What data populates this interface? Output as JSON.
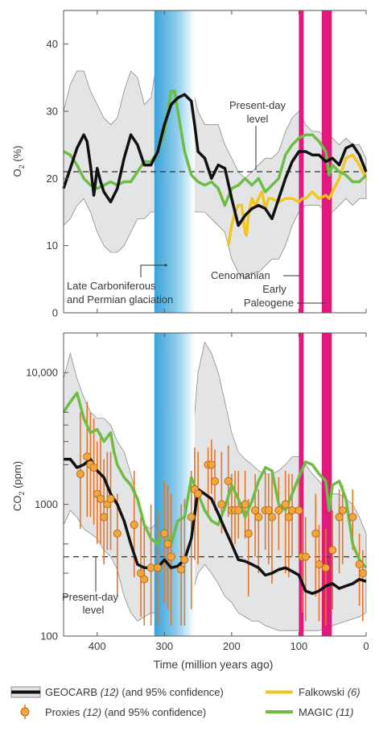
{
  "colors": {
    "geocarb": "#111111",
    "confidence_fill": "#e3e4e6",
    "confidence_edge": "#8c8c8c",
    "proxies_fill": "#f3a63a",
    "proxies_edge": "#b5651d",
    "proxy_error": "#e8752a",
    "falkowski": "#f2c51f",
    "magic": "#6dbd45",
    "glaciation": "#3aa3d8",
    "events": "#e0197d",
    "present_line": "#333333"
  },
  "shared_axis": {
    "xlabel": "Time (million years ago)",
    "xlim": [
      450,
      0
    ],
    "ticks": [
      "400",
      "300",
      "200",
      "100",
      "0"
    ]
  },
  "chart_data": [
    {
      "type": "line",
      "id": "o2",
      "ylabel_main": "O",
      "ylabel_sub": "2",
      "ylabel_unit": " (%)",
      "ylim": [
        0,
        45
      ],
      "yticks": [
        "0",
        "10",
        "20",
        "30",
        "40"
      ],
      "present_day_value": 21,
      "annotations": {
        "present_line1": "Present-day",
        "present_line2": "level",
        "glaciation_line1": "Late Carboniferous",
        "glaciation_line2": "and Permian glaciation",
        "cenomanian": "Cenomanian",
        "paleogene_line1": "Early",
        "paleogene_line2": "Paleogene"
      },
      "series": [
        {
          "key": "geocarb",
          "x": [
            450,
            440,
            430,
            420,
            415,
            410,
            405,
            400,
            395,
            390,
            380,
            370,
            360,
            350,
            340,
            330,
            320,
            310,
            300,
            290,
            280,
            270,
            260,
            255,
            250,
            240,
            230,
            220,
            210,
            200,
            190,
            180,
            170,
            160,
            150,
            140,
            130,
            120,
            110,
            100,
            90,
            80,
            70,
            60,
            50,
            40,
            30,
            20,
            10,
            0
          ],
          "y": [
            18.5,
            21.5,
            24.5,
            26.5,
            25.5,
            22,
            17.5,
            21.5,
            19.5,
            18,
            16.5,
            18.5,
            23,
            26.5,
            25,
            22,
            22,
            24,
            28,
            31,
            32,
            32.5,
            31.5,
            28,
            24,
            23,
            20,
            22,
            21.5,
            17,
            13,
            14.5,
            15.5,
            16,
            15.5,
            14,
            17,
            20,
            22.5,
            24,
            24,
            23.5,
            23.5,
            22.5,
            23,
            22,
            24.5,
            25,
            23.5,
            21
          ]
        },
        {
          "key": "magic",
          "x": [
            450,
            440,
            430,
            420,
            410,
            400,
            390,
            380,
            370,
            360,
            350,
            340,
            330,
            320,
            310,
            300,
            290,
            285,
            280,
            270,
            260,
            250,
            240,
            230,
            220,
            210,
            200,
            190,
            180,
            170,
            160,
            150,
            140,
            130,
            120,
            110,
            100,
            90,
            80,
            70,
            60,
            55,
            50,
            40,
            30,
            20,
            10,
            0
          ],
          "y": [
            24,
            23.5,
            22,
            20,
            19,
            18.5,
            19,
            19.5,
            19,
            19.5,
            19.5,
            21,
            22.5,
            22.5,
            24,
            27,
            33,
            33,
            30,
            24,
            20.5,
            19.5,
            19,
            19.5,
            18.5,
            16,
            18.5,
            19,
            20,
            19,
            20,
            18,
            19,
            20,
            23.5,
            25,
            26,
            26.5,
            26.5,
            25.5,
            24,
            20.5,
            22,
            21,
            20.5,
            19.5,
            19.5,
            20.5
          ]
        },
        {
          "key": "falkowski",
          "x": [
            205,
            200,
            195,
            190,
            185,
            180,
            178,
            175,
            170,
            165,
            160,
            155,
            150,
            145,
            140,
            130,
            120,
            110,
            100,
            95,
            90,
            80,
            70,
            60,
            55,
            50,
            40,
            30,
            20,
            10,
            5,
            0
          ],
          "y": [
            10,
            13,
            15,
            16,
            16,
            12,
            11.5,
            14.5,
            17,
            16,
            17,
            18,
            15.5,
            17,
            17,
            16.5,
            17,
            17,
            16.5,
            17,
            17,
            18,
            17,
            17.5,
            17,
            18,
            20,
            23,
            23.5,
            22,
            21,
            20
          ]
        }
      ],
      "confidence_band": {
        "x": [
          450,
          440,
          430,
          420,
          410,
          400,
          390,
          380,
          370,
          360,
          350,
          340,
          330,
          320,
          310,
          300,
          290,
          280,
          270,
          260,
          250,
          240,
          230,
          220,
          210,
          200,
          190,
          180,
          170,
          160,
          150,
          140,
          130,
          120,
          110,
          100,
          90,
          80,
          70,
          60,
          50,
          40,
          30,
          20,
          10,
          0
        ],
        "upper": [
          30,
          34,
          36,
          36,
          33,
          31,
          29,
          28,
          29,
          33,
          36,
          35,
          31,
          32,
          38,
          43,
          45,
          44,
          40,
          34,
          30,
          28,
          28,
          28,
          25,
          23,
          21,
          20,
          21,
          22,
          23,
          23,
          24,
          27,
          29,
          30,
          28,
          27,
          27,
          26,
          26,
          25,
          26,
          25,
          25,
          23
        ],
        "lower": [
          13,
          14,
          16,
          17,
          15,
          12,
          10,
          9,
          9,
          10,
          12,
          14,
          14,
          15,
          15,
          16,
          17,
          17,
          16,
          15,
          15,
          15,
          14,
          13,
          12,
          8,
          6,
          5,
          6,
          6,
          7,
          8,
          8,
          10,
          13,
          15,
          16,
          16,
          16,
          15,
          15,
          16,
          17,
          16,
          17,
          17
        ]
      }
    },
    {
      "type": "line",
      "id": "co2",
      "ylabel_main": "CO",
      "ylabel_sub": "2",
      "ylabel_unit": " (ppm)",
      "yscale": "log",
      "ylim": [
        100,
        20000
      ],
      "yticks": [
        "100",
        "1000",
        "10,000"
      ],
      "present_day_value": 400,
      "annotations": {
        "present_line1": "Present-day",
        "present_line2": "level"
      },
      "series": [
        {
          "key": "geocarb",
          "x": [
            450,
            440,
            430,
            420,
            410,
            400,
            390,
            380,
            370,
            360,
            350,
            340,
            330,
            320,
            310,
            300,
            290,
            280,
            270,
            260,
            250,
            240,
            230,
            220,
            210,
            200,
            190,
            180,
            170,
            160,
            150,
            140,
            130,
            120,
            110,
            100,
            90,
            80,
            70,
            60,
            50,
            40,
            30,
            20,
            10,
            0
          ],
          "y": [
            2200,
            2200,
            1900,
            2000,
            2200,
            1800,
            1600,
            1200,
            1000,
            750,
            500,
            350,
            330,
            330,
            330,
            380,
            330,
            340,
            380,
            550,
            1300,
            1200,
            1100,
            850,
            650,
            500,
            380,
            370,
            350,
            330,
            290,
            300,
            320,
            330,
            310,
            290,
            220,
            210,
            220,
            240,
            250,
            230,
            240,
            250,
            270,
            260
          ]
        },
        {
          "key": "magic",
          "x": [
            450,
            440,
            430,
            420,
            410,
            400,
            390,
            380,
            375,
            370,
            360,
            350,
            340,
            330,
            320,
            310,
            300,
            290,
            280,
            270,
            260,
            250,
            240,
            230,
            220,
            210,
            200,
            190,
            180,
            170,
            160,
            150,
            140,
            130,
            120,
            110,
            100,
            90,
            80,
            70,
            60,
            55,
            50,
            40,
            30,
            20,
            10,
            0
          ],
          "y": [
            5000,
            6000,
            7000,
            4500,
            3500,
            3700,
            3000,
            3500,
            2500,
            2000,
            1600,
            1400,
            1100,
            700,
            550,
            500,
            650,
            500,
            750,
            800,
            1600,
            1200,
            900,
            750,
            700,
            950,
            1400,
            1100,
            800,
            1050,
            1500,
            1900,
            1800,
            1000,
            900,
            1200,
            1600,
            2100,
            2000,
            1700,
            1500,
            900,
            1400,
            1500,
            1100,
            500,
            380,
            330
          ]
        }
      ],
      "confidence_band": {
        "x": [
          450,
          440,
          430,
          420,
          410,
          400,
          390,
          380,
          370,
          360,
          350,
          340,
          330,
          320,
          310,
          300,
          290,
          280,
          270,
          260,
          250,
          240,
          230,
          220,
          210,
          200,
          190,
          180,
          170,
          160,
          150,
          140,
          130,
          120,
          110,
          100,
          90,
          80,
          70,
          60,
          50,
          40,
          30,
          20,
          10,
          0
        ],
        "upper": [
          9000,
          14000,
          9000,
          6500,
          5000,
          4500,
          4500,
          4000,
          3000,
          2500,
          1700,
          1100,
          700,
          650,
          750,
          900,
          1000,
          1100,
          1300,
          2500,
          10000,
          17000,
          14000,
          10000,
          6000,
          3500,
          2500,
          2200,
          2000,
          1800,
          1700,
          1700,
          1800,
          2000,
          2300,
          2300,
          2000,
          1700,
          1500,
          1300,
          1200,
          1200,
          1100,
          1000,
          800,
          600
        ],
        "lower": [
          700,
          900,
          800,
          650,
          600,
          550,
          450,
          400,
          320,
          200,
          150,
          130,
          140,
          150,
          150,
          160,
          150,
          150,
          160,
          200,
          300,
          350,
          300,
          250,
          200,
          180,
          150,
          140,
          130,
          130,
          120,
          115,
          110,
          110,
          110,
          110,
          110,
          110,
          110,
          115,
          120,
          125,
          130,
          135,
          140,
          150
        ]
      },
      "proxies": {
        "x": [
          425,
          415,
          410,
          405,
          400,
          395,
          390,
          385,
          380,
          370,
          345,
          335,
          330,
          320,
          310,
          300,
          295,
          290,
          275,
          270,
          260,
          255,
          250,
          235,
          230,
          225,
          215,
          205,
          200,
          195,
          190,
          180,
          175,
          165,
          160,
          150,
          145,
          140,
          130,
          120,
          115,
          110,
          100,
          95,
          90,
          75,
          70,
          60,
          50,
          40,
          35,
          20,
          10,
          5
        ],
        "y": [
          1700,
          2300,
          2000,
          1900,
          1200,
          1100,
          800,
          1000,
          1100,
          600,
          700,
          300,
          270,
          330,
          330,
          600,
          500,
          400,
          320,
          380,
          800,
          1300,
          1200,
          2000,
          2000,
          1500,
          1000,
          1500,
          900,
          900,
          900,
          1000,
          600,
          900,
          800,
          900,
          900,
          800,
          900,
          1000,
          800,
          900,
          900,
          400,
          400,
          600,
          350,
          330,
          450,
          800,
          900,
          800,
          350,
          300
        ],
        "err_low": [
          650,
          800,
          800,
          700,
          500,
          500,
          350,
          450,
          450,
          200,
          280,
          140,
          120,
          120,
          120,
          180,
          160,
          120,
          120,
          120,
          160,
          380,
          350,
          800,
          1200,
          900,
          600,
          800,
          500,
          500,
          550,
          550,
          200,
          400,
          300,
          450,
          350,
          250,
          450,
          300,
          280,
          400,
          400,
          150,
          130,
          200,
          130,
          120,
          160,
          300,
          350,
          450,
          170,
          130
        ],
        "err_high": [
          5000,
          6000,
          5000,
          4500,
          3000,
          3500,
          2200,
          2500,
          2500,
          1200,
          1800,
          800,
          700,
          1000,
          900,
          1500,
          1400,
          1200,
          1000,
          1100,
          1800,
          2700,
          2500,
          2700,
          3100,
          2600,
          2500,
          2800,
          1700,
          1800,
          1800,
          1800,
          1100,
          1700,
          1300,
          1800,
          1700,
          1700,
          1600,
          1800,
          1700,
          1700,
          1700,
          900,
          800,
          1200,
          700,
          650,
          900,
          1300,
          1400,
          1300,
          600,
          450
        ]
      }
    }
  ],
  "legend": {
    "geocarb_name": "GEOCARB",
    "geocarb_ref": "(12)",
    "geocarb_conf": "(and 95% confidence)",
    "proxies_name": "Proxies",
    "proxies_ref": "(12)",
    "proxies_conf": "(and 95% confidence)",
    "falkowski_name": "Falkowski",
    "falkowski_ref": "(6)",
    "magic_name": "MAGIC",
    "magic_ref": "(11)"
  }
}
